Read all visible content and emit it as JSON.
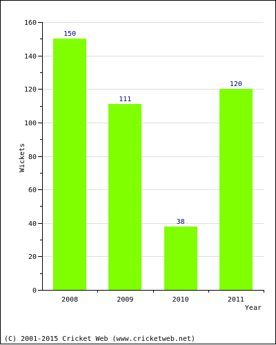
{
  "chart_data": {
    "type": "bar",
    "title": "",
    "xlabel": "Year",
    "ylabel": "Wickets",
    "categories": [
      "2008",
      "2009",
      "2010",
      "2011"
    ],
    "values": [
      150,
      111,
      38,
      120
    ],
    "ylim": [
      0,
      160
    ],
    "yticks": [
      0,
      20,
      40,
      60,
      80,
      100,
      120,
      140,
      160
    ],
    "grid": true,
    "data_labels": true,
    "bar_color": "#80ff00",
    "label_color": "#000080",
    "grid_color": "#dddddd"
  },
  "footer": {
    "text": "(C) 2001-2015 Cricket Web (www.cricketweb.net)"
  }
}
